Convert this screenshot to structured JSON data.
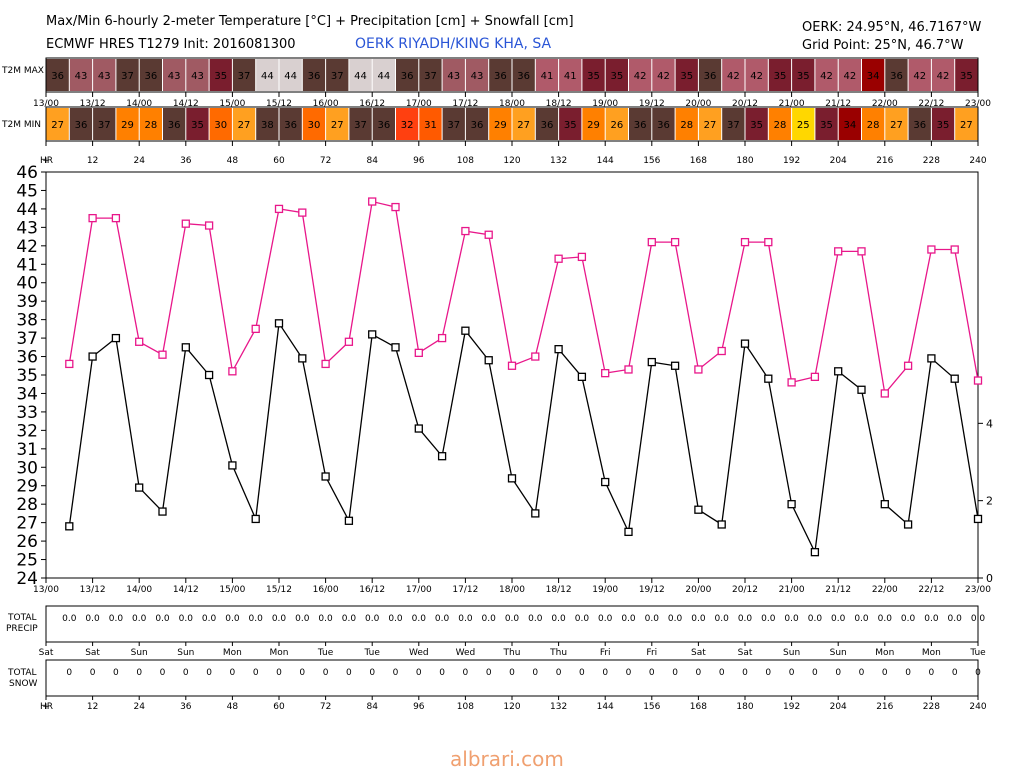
{
  "header": {
    "title": "Max/Min 6-hourly 2-meter Temperature [°C] + Precipitation [cm] + Snowfall [cm]",
    "model_line": "ECMWF HRES T1279 Init: 2016081300",
    "station": "OERK RIYADH/KING KHA, SA",
    "coords": "OERK: 24.95°N, 46.7167°W",
    "grid_point": "Grid Point: 25°N, 46.7°W"
  },
  "labels": {
    "t2m_max": "T2M MAX",
    "t2m_min": "T2M MIN",
    "hr": "HR",
    "total_precip_1": "TOTAL",
    "total_precip_2": "PRECIP",
    "total_snow_1": "TOTAL",
    "total_snow_2": "SNOW",
    "watermark": "albrari.com"
  },
  "chart_data": {
    "type": "line",
    "title": "Max/Min 6-hourly 2-meter Temperature [°C] + Precipitation [cm] + Snowfall [cm]",
    "x_hours": [
      0,
      6,
      12,
      18,
      24,
      30,
      36,
      42,
      48,
      54,
      60,
      66,
      72,
      78,
      84,
      90,
      96,
      102,
      108,
      114,
      120,
      126,
      132,
      138,
      144,
      150,
      156,
      162,
      168,
      174,
      180,
      186,
      192,
      198,
      204,
      210,
      216,
      222,
      228,
      234,
      240
    ],
    "date_ticks": [
      "13/00",
      "13/12",
      "14/00",
      "14/12",
      "15/00",
      "15/12",
      "16/00",
      "16/12",
      "17/00",
      "17/12",
      "18/00",
      "18/12",
      "19/00",
      "19/12",
      "20/00",
      "20/12",
      "21/00",
      "21/12",
      "22/00",
      "22/12",
      "23/00"
    ],
    "hr_ticks": [
      "+",
      "12",
      "24",
      "36",
      "48",
      "60",
      "72",
      "84",
      "96",
      "108",
      "120",
      "132",
      "144",
      "156",
      "168",
      "180",
      "192",
      "204",
      "216",
      "228",
      "240"
    ],
    "weekday_ticks": [
      "Sat",
      "Sat",
      "Sun",
      "Sun",
      "Mon",
      "Mon",
      "Tue",
      "Tue",
      "Wed",
      "Wed",
      "Thu",
      "Thu",
      "Fri",
      "Fri",
      "Sat",
      "Sat",
      "Sun",
      "Sun",
      "Mon",
      "Mon",
      "Tue"
    ],
    "ylim": [
      24,
      46
    ],
    "y2_ticks": [
      0,
      2,
      4
    ],
    "y2lim": [
      0,
      10.5
    ],
    "series": [
      {
        "name": "T2M MAX",
        "color": "#e8178a",
        "values": [
          35.6,
          43.5,
          43.5,
          36.8,
          36.1,
          43.2,
          43.1,
          35.2,
          37.5,
          44.0,
          43.8,
          35.6,
          36.8,
          44.4,
          44.1,
          36.2,
          37.0,
          42.8,
          42.6,
          35.5,
          36.0,
          41.3,
          41.4,
          35.1,
          35.3,
          42.2,
          42.2,
          35.3,
          36.3,
          42.2,
          42.2,
          34.6,
          34.9,
          41.7,
          41.7,
          34.0,
          35.5,
          41.8,
          41.8,
          34.7
        ]
      },
      {
        "name": "T2M MIN",
        "color": "#000000",
        "values": [
          26.8,
          36.0,
          37.0,
          28.9,
          27.6,
          36.5,
          35.0,
          30.1,
          27.2,
          37.8,
          35.9,
          29.5,
          27.1,
          37.2,
          36.5,
          32.1,
          30.6,
          37.4,
          35.8,
          29.4,
          27.5,
          36.4,
          34.9,
          29.2,
          26.5,
          35.7,
          35.5,
          27.7,
          26.9,
          36.7,
          34.8,
          28.0,
          25.4,
          35.2,
          34.2,
          28.0,
          26.9,
          35.9,
          34.8,
          27.2
        ]
      }
    ],
    "t2m_max_row": [
      "36",
      "43",
      "43",
      "37",
      "36",
      "43",
      "43",
      "35",
      "37",
      "44",
      "44",
      "36",
      "37",
      "44",
      "44",
      "36",
      "37",
      "43",
      "43",
      "36",
      "36",
      "41",
      "41",
      "35",
      "35",
      "42",
      "42",
      "35",
      "36",
      "42",
      "42",
      "35",
      "35",
      "42",
      "42",
      "34",
      "36",
      "42",
      "42",
      "35"
    ],
    "t2m_min_row": [
      "27",
      "36",
      "37",
      "29",
      "28",
      "36",
      "35",
      "30",
      "27",
      "38",
      "36",
      "30",
      "27",
      "37",
      "36",
      "32",
      "31",
      "37",
      "36",
      "29",
      "27",
      "36",
      "35",
      "29",
      "26",
      "36",
      "36",
      "28",
      "27",
      "37",
      "35",
      "28",
      "25",
      "35",
      "34",
      "28",
      "27",
      "36",
      "35",
      "27"
    ],
    "precip_row": [
      "0.0",
      "0.0",
      "0.0",
      "0.0",
      "0.0",
      "0.0",
      "0.0",
      "0.0",
      "0.0",
      "0.0",
      "0.0",
      "0.0",
      "0.0",
      "0.0",
      "0.0",
      "0.0",
      "0.0",
      "0.0",
      "0.0",
      "0.0",
      "0.0",
      "0.0",
      "0.0",
      "0.0",
      "0.0",
      "0.0",
      "0.0",
      "0.0",
      "0.0",
      "0.0",
      "0.0",
      "0.0",
      "0.0",
      "0.0",
      "0.0",
      "0.0",
      "0.0",
      "0.0",
      "0.0",
      "0.0"
    ],
    "snow_row": [
      "0",
      "0",
      "0",
      "0",
      "0",
      "0",
      "0",
      "0",
      "0",
      "0",
      "0",
      "0",
      "0",
      "0",
      "0",
      "0",
      "0",
      "0",
      "0",
      "0",
      "0",
      "0",
      "0",
      "0",
      "0",
      "0",
      "0",
      "0",
      "0",
      "0",
      "0",
      "0",
      "0",
      "0",
      "0",
      "0",
      "0",
      "0",
      "0",
      "0"
    ],
    "grid": false
  }
}
